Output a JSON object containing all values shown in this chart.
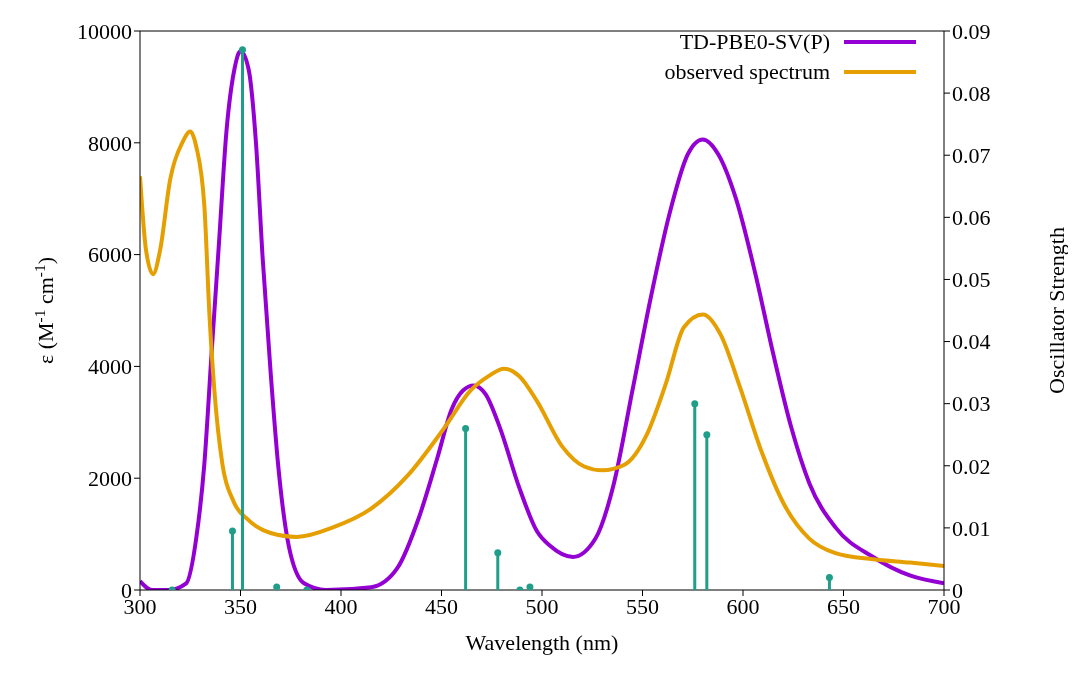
{
  "chart_data": {
    "type": "line",
    "xlabel": "Wavelength (nm)",
    "ylabel": "ε (M$^{-1}$ cm$^{-1}$)",
    "y2label": "Oscillator Strength",
    "xlim": [
      300,
      700
    ],
    "xticks": [
      300,
      350,
      400,
      450,
      500,
      550,
      600,
      650,
      700
    ],
    "ylim": [
      0,
      10000
    ],
    "yticks": [
      0,
      2000,
      4000,
      6000,
      8000,
      10000
    ],
    "y2lim": [
      0,
      0.09
    ],
    "y2ticks": [
      0,
      0.01,
      0.02,
      0.03,
      0.04,
      0.05,
      0.06,
      0.07,
      0.08,
      0.09
    ],
    "legend": "top right",
    "grid": false,
    "marker": "none",
    "line_style": "solid",
    "series": [
      {
        "name": "TD-PBE0-SV(P)",
        "color": "#9400d3",
        "x": [
          300,
          306,
          314,
          323,
          328,
          332,
          335.6,
          339.3,
          343,
          347,
          350,
          354,
          357.7,
          361,
          365,
          368.7,
          374,
          381.6,
          392.5,
          415,
          428,
          439,
          448,
          455,
          460.7,
          466,
          472,
          479,
          488.6,
          497.5,
          504,
          515.4,
          526.6,
          535.8,
          545,
          554,
          563.5,
          572.6,
          580,
          587.6,
          596.5,
          606,
          615,
          624,
          633,
          646,
          664.7,
          683,
          700
        ],
        "values": [
          160,
          0,
          0,
          120,
          930,
          2250,
          4230,
          6210,
          8200,
          9320,
          9640,
          9320,
          8000,
          5950,
          3890,
          2250,
          790,
          120,
          0,
          50,
          390,
          1320,
          2370,
          3230,
          3570,
          3660,
          3500,
          2910,
          1840,
          1050,
          790,
          590,
          920,
          1910,
          3570,
          5210,
          6740,
          7800,
          8060,
          7800,
          7000,
          5680,
          4230,
          2910,
          1910,
          1120,
          590,
          260,
          120
        ]
      },
      {
        "name": "observed spectrum",
        "color": "#e69f00",
        "x": [
          300,
          303,
          306.5,
          310,
          315,
          321,
          325,
          328,
          332,
          334.6,
          337,
          341,
          346.6,
          354,
          365,
          378,
          396,
          414.8,
          433,
          451.6,
          464.5,
          473.6,
          481,
          488.6,
          497.5,
          510,
          521,
          530,
          541,
          552,
          561.7,
          570.6,
          580,
          589,
          598.5,
          609.5,
          620.6,
          633,
          646,
          664.7,
          683,
          700
        ],
        "values": [
          7400,
          6080,
          5650,
          6080,
          7340,
          8000,
          8200,
          7930,
          6880,
          4890,
          3570,
          2250,
          1580,
          1250,
          1020,
          950,
          1120,
          1450,
          2040,
          2910,
          3570,
          3830,
          3960,
          3830,
          3380,
          2570,
          2210,
          2140,
          2240,
          2770,
          3700,
          4700,
          4930,
          4560,
          3630,
          2450,
          1520,
          920,
          660,
          550,
          490,
          430
        ]
      },
      {
        "type": "lollipop",
        "axis": "y2",
        "color": "#1f9e89",
        "marker": "circle",
        "x": [
          316,
          346,
          351,
          368,
          383,
          462,
          478,
          489,
          494,
          576,
          582,
          643
        ],
        "values": [
          0,
          0.0095,
          0.087,
          0.0005,
          0,
          0.026,
          0.006,
          0,
          0.0005,
          0.03,
          0.025,
          0.002
        ]
      }
    ]
  }
}
